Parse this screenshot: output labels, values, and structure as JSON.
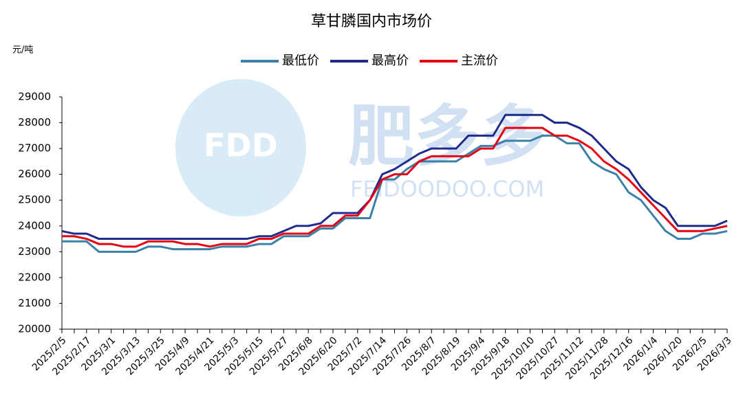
{
  "chart_data": {
    "type": "line",
    "title": "草甘膦国内市场价",
    "y_unit": "元/吨",
    "watermark": {
      "logo": "FDD",
      "name": "肥多多",
      "site": "FEIDOODOO.COM"
    },
    "categories": [
      "2025/2/5",
      null,
      "2025/2/17",
      null,
      "2025/3/1",
      null,
      "2025/3/13",
      null,
      "2025/3/25",
      null,
      "2025/4/9",
      null,
      "2025/4/21",
      null,
      "2025/5/3",
      null,
      "2025/5/15",
      null,
      "2025/5/27",
      null,
      "2025/6/8",
      null,
      "2025/6/20",
      null,
      "2025/7/2",
      null,
      "2025/7/14",
      null,
      "2025/7/26",
      null,
      "2025/8/7",
      null,
      "2025/8/19",
      null,
      "2025/9/4",
      null,
      "2025/9/18",
      null,
      "2025/10/10",
      null,
      "2025/10/27",
      null,
      "2025/11/12",
      null,
      "2025/11/28",
      null,
      "2025/12/16",
      null,
      "2026/1/4",
      null,
      "2026/1/20",
      null,
      "2026/2/5",
      null,
      "2026/3/3"
    ],
    "series": [
      {
        "name": "最低价",
        "color": "#3a80a8",
        "values": [
          23400,
          23400,
          23400,
          23000,
          23000,
          23000,
          23000,
          23200,
          23200,
          23100,
          23100,
          23100,
          23100,
          23200,
          23200,
          23200,
          23300,
          23300,
          23600,
          23600,
          23600,
          23900,
          23900,
          24300,
          24300,
          24300,
          25800,
          25800,
          26200,
          26500,
          26500,
          26500,
          26500,
          26800,
          27100,
          27100,
          27300,
          27300,
          27300,
          27500,
          27500,
          27200,
          27200,
          26500,
          26200,
          26000,
          25300,
          25000,
          24400,
          23800,
          23500,
          23500,
          23700,
          23700,
          23800
        ]
      },
      {
        "name": "最高价",
        "color": "#1f2a8c",
        "values": [
          23800,
          23700,
          23700,
          23500,
          23500,
          23500,
          23500,
          23500,
          23500,
          23500,
          23500,
          23500,
          23500,
          23500,
          23500,
          23500,
          23600,
          23600,
          23800,
          24000,
          24000,
          24100,
          24500,
          24500,
          24500,
          25000,
          26000,
          26200,
          26500,
          26800,
          27000,
          27000,
          27000,
          27500,
          27500,
          27500,
          28300,
          28300,
          28300,
          28300,
          28000,
          28000,
          27800,
          27500,
          27000,
          26500,
          26200,
          25500,
          25000,
          24700,
          24000,
          24000,
          24000,
          24000,
          24200
        ]
      },
      {
        "name": "主流价",
        "color": "#e60012",
        "values": [
          23600,
          23600,
          23500,
          23300,
          23300,
          23200,
          23200,
          23400,
          23400,
          23400,
          23300,
          23300,
          23200,
          23300,
          23300,
          23300,
          23500,
          23500,
          23700,
          23700,
          23700,
          24000,
          24000,
          24400,
          24400,
          25000,
          25800,
          26000,
          26000,
          26500,
          26700,
          26700,
          26700,
          26700,
          27000,
          27000,
          27800,
          27800,
          27800,
          27800,
          27500,
          27500,
          27300,
          27000,
          26500,
          26200,
          25800,
          25300,
          24800,
          24300,
          23800,
          23800,
          23800,
          23900,
          24000
        ]
      }
    ],
    "ylim": [
      20000,
      29000
    ],
    "yticks": [
      20000,
      21000,
      22000,
      23000,
      24000,
      25000,
      26000,
      27000,
      28000,
      29000
    ],
    "legend": "top",
    "grid": false
  }
}
